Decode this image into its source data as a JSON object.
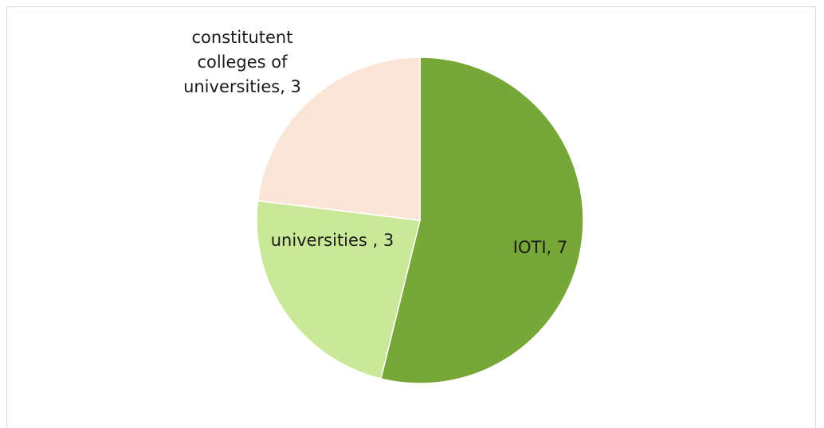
{
  "chart_data": {
    "type": "pie",
    "categories": [
      "IOTI",
      "universities ",
      "constitutent colleges of universities"
    ],
    "values": [
      7,
      3,
      3
    ],
    "labels": [
      "IOTI, 7",
      "universities , 3",
      "constitutent colleges of universities, 3"
    ],
    "label_lines": [
      [
        "IOTI, 7"
      ],
      [
        "universities , 3"
      ],
      [
        "constitutent",
        "colleges of",
        "universities, 3"
      ]
    ],
    "colors": [
      "#77a737",
      "#c9e998",
      "#fbe5d7"
    ],
    "legend": "none"
  }
}
